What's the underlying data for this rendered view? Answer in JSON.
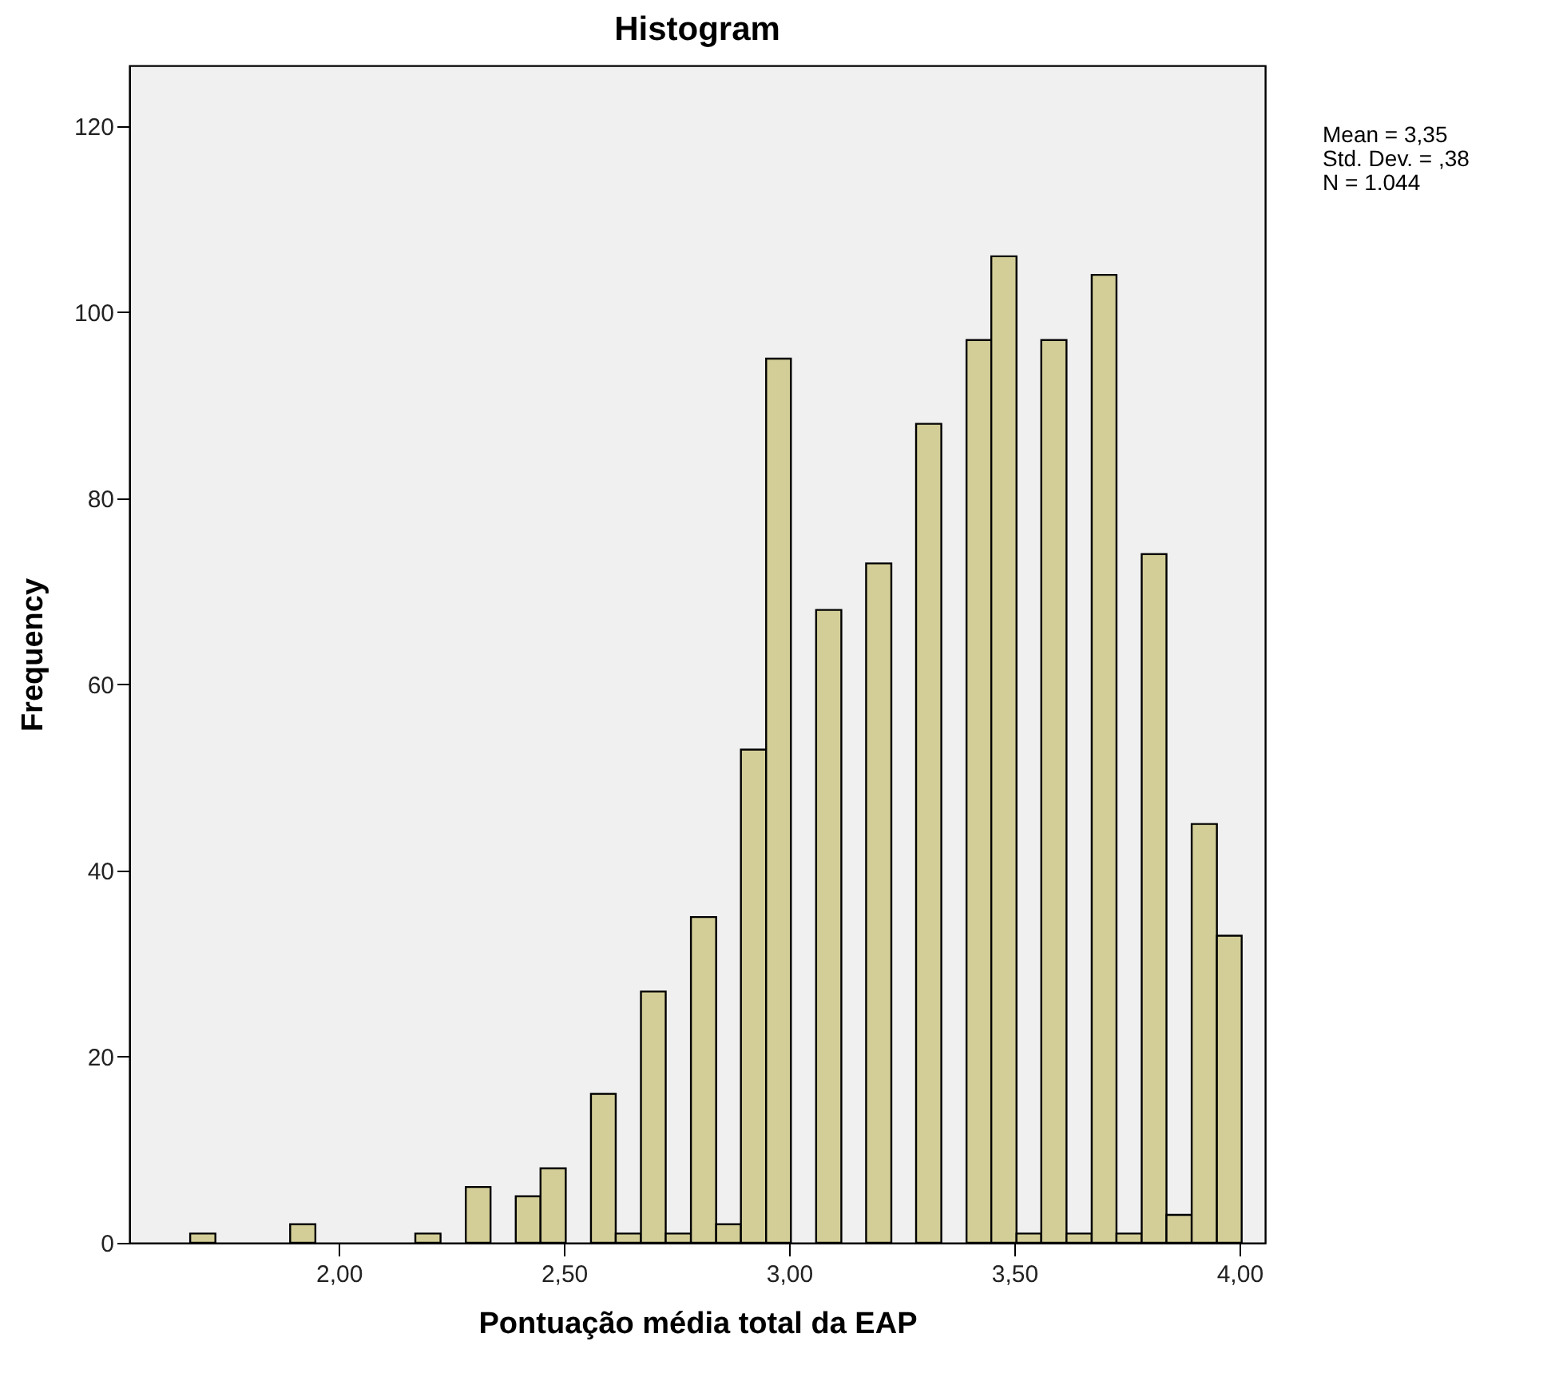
{
  "chart_data": {
    "type": "histogram",
    "title": "Histogram",
    "xlabel": "Pontuação média total da EAP",
    "ylabel": "Frequency",
    "bins": [
      1.67,
      1.726,
      1.892,
      1.948,
      2.17,
      2.226,
      2.282,
      2.337,
      2.393,
      2.448,
      2.504,
      2.56,
      2.615,
      2.671,
      2.726,
      2.782,
      2.838,
      2.893,
      2.949,
      3.004,
      3.06,
      3.116,
      3.171,
      3.227,
      3.282,
      3.338,
      3.394,
      3.449,
      3.505,
      3.56,
      3.616,
      3.672,
      3.727,
      3.783,
      3.838,
      3.894,
      3.95,
      4.005
    ],
    "values": [
      1,
      0,
      2,
      0,
      1,
      0,
      6,
      0,
      5,
      8,
      0,
      16,
      1,
      27,
      1,
      35,
      2,
      53,
      95,
      0,
      68,
      0,
      73,
      0,
      88,
      0,
      97,
      106,
      1,
      97,
      1,
      104,
      1,
      74,
      3,
      45,
      33
    ],
    "color": "#d3ce97",
    "xlim": [
      1.535,
      4.057
    ],
    "xticks": [
      {
        "value": 2,
        "label": "2,00"
      },
      {
        "value": 2.5,
        "label": "2,50"
      },
      {
        "value": 3,
        "label": "3,00"
      },
      {
        "value": 3.5,
        "label": "3,50"
      },
      {
        "value": 4,
        "label": "4,00"
      }
    ],
    "ylim": [
      0,
      126.5
    ],
    "yticks": [
      0,
      20,
      40,
      60,
      80,
      100,
      120
    ],
    "grid": false,
    "annotations": [
      "Mean = 3,35",
      "Std. Dev. = ,38",
      "N = 1.044"
    ]
  }
}
